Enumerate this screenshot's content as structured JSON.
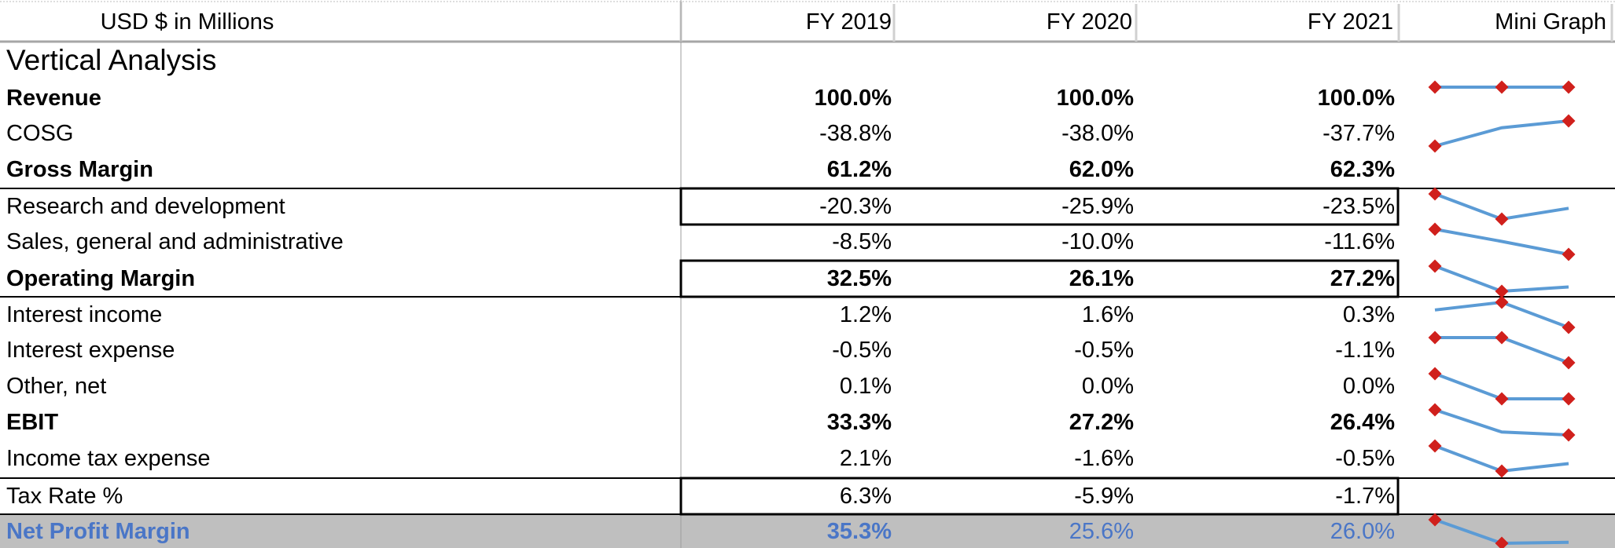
{
  "header": {
    "units": "USD $ in Millions",
    "col1": "FY 2019",
    "col2": "FY 2020",
    "col3": "FY 2021",
    "graph": "Mini Graph"
  },
  "section_title": "Vertical Analysis",
  "colors": {
    "spark_line": "#5b9bd5",
    "spark_marker": "#d0201c",
    "total_fill": "#bfbfbf",
    "total_text": "#4a76c7"
  },
  "rows": [
    {
      "label": "Revenue",
      "v1": "100.0%",
      "v2": "100.0%",
      "v3": "100.0%",
      "spark": [
        100.0,
        100.0,
        100.0
      ]
    },
    {
      "label": "COSG",
      "v1": "-38.8%",
      "v2": "-38.0%",
      "v3": "-37.7%",
      "spark": [
        -38.8,
        -38.0,
        -37.7
      ]
    },
    {
      "label": "Gross Margin",
      "v1": "61.2%",
      "v2": "62.0%",
      "v3": "62.3%",
      "spark": null
    },
    {
      "label": "Research and development",
      "v1": "-20.3%",
      "v2": "-25.9%",
      "v3": "-23.5%",
      "spark": [
        -20.3,
        -25.9,
        -23.5
      ]
    },
    {
      "label": "Sales, general and administrative",
      "v1": "-8.5%",
      "v2": "-10.0%",
      "v3": "-11.6%",
      "spark": [
        -8.5,
        -10.0,
        -11.6
      ]
    },
    {
      "label": "Operating Margin",
      "v1": "32.5%",
      "v2": "26.1%",
      "v3": "27.2%",
      "spark": [
        32.5,
        26.1,
        27.2
      ]
    },
    {
      "label": "Interest income",
      "v1": "1.2%",
      "v2": "1.6%",
      "v3": "0.3%",
      "spark": [
        1.2,
        1.6,
        0.3
      ]
    },
    {
      "label": "Interest expense",
      "v1": "-0.5%",
      "v2": "-0.5%",
      "v3": "-1.1%",
      "spark": [
        -0.5,
        -0.5,
        -1.1
      ]
    },
    {
      "label": "Other, net",
      "v1": "0.1%",
      "v2": "0.0%",
      "v3": "0.0%",
      "spark": [
        0.1,
        0.0,
        0.0
      ]
    },
    {
      "label": "EBIT",
      "v1": "33.3%",
      "v2": "27.2%",
      "v3": "26.4%",
      "spark": [
        33.3,
        27.2,
        26.4
      ]
    },
    {
      "label": "Income tax expense",
      "v1": "2.1%",
      "v2": "-1.6%",
      "v3": "-0.5%",
      "spark": [
        2.1,
        -1.6,
        -0.5
      ]
    },
    {
      "label": "Tax Rate %",
      "v1": "6.3%",
      "v2": "-5.9%",
      "v3": "-1.7%",
      "spark": null
    },
    {
      "label": "Net Profit Margin",
      "v1": "35.3%",
      "v2": "25.6%",
      "v3": "26.0%",
      "spark": [
        35.3,
        25.6,
        26.0
      ]
    }
  ]
}
